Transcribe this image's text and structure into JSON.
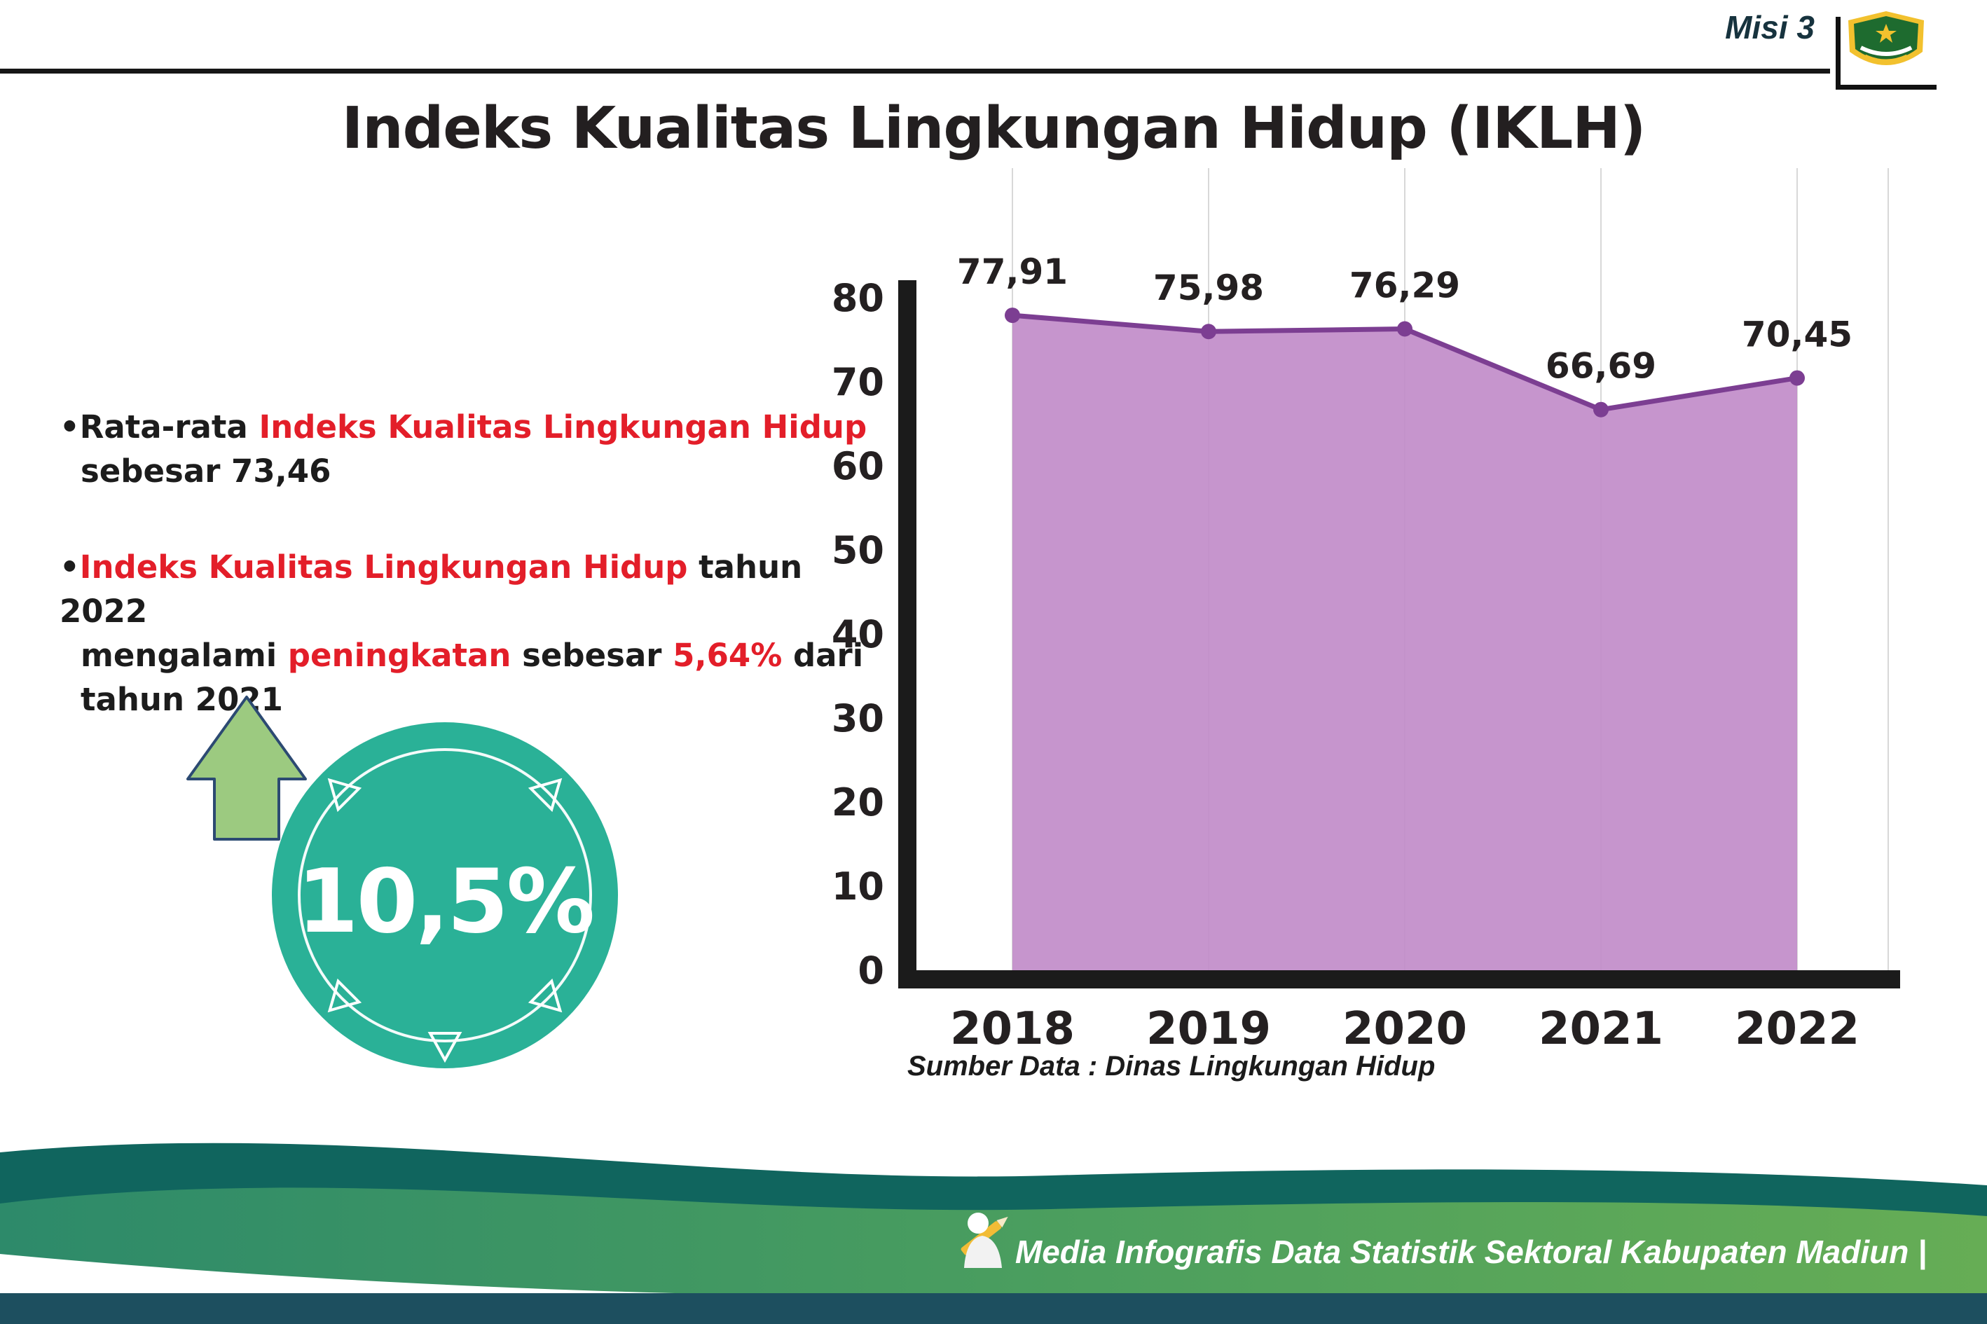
{
  "header": {
    "misi_label": "Misi 3",
    "title": "Indeks Kualitas Lingkungan Hidup (IKLH)",
    "logo_name": "Lambang Kabupaten Madiun"
  },
  "bullets": {
    "marker": "•",
    "b1": {
      "l1_black": "Rata-rata ",
      "l1_red": "Indeks Kualitas Lingkungan Hidup",
      "l2": "sebesar 73,46"
    },
    "b2": {
      "l1_red": "Indeks Kualitas Lingkungan Hidup",
      "l1_black": " tahun 2022",
      "l2_s1": "mengalami ",
      "l2_s2": "peningkatan",
      "l2_s3": " sebesar ",
      "l2_s4": "5,64%",
      "l2_s5": " dari",
      "l3": "tahun 2021"
    }
  },
  "badge": {
    "value": "10,5%"
  },
  "chart_data": {
    "type": "area",
    "title": "Indeks Kualitas Lingkungan Hidup (IKLH)",
    "categories": [
      "2018",
      "2019",
      "2020",
      "2021",
      "2022"
    ],
    "values": [
      77.91,
      75.98,
      76.29,
      66.69,
      70.45
    ],
    "labels": [
      "77,91",
      "75,98",
      "76,29",
      "66,69",
      "70,45"
    ],
    "ylim": [
      0,
      80
    ],
    "yticks": [
      0,
      10,
      20,
      30,
      40,
      50,
      60,
      70,
      80
    ],
    "xlabel": "",
    "ylabel": "",
    "grid": "vertical-light",
    "legend": "none",
    "line_color": "#7c3e92",
    "fill_color": "#c18cc9",
    "source": "Sumber Data : Dinas Lingkungan Hidup"
  },
  "footer": {
    "credit": "Media Infografis Data Statistik Sektoral Kabupaten Madiun |"
  },
  "colors": {
    "accent_red": "#e31e29",
    "badge_teal": "#2ab197",
    "arrow_green": "#9cca80",
    "axis_black": "#1b1b1b",
    "footer_teal": "#10655e",
    "footer_green": "#4c9f5e",
    "footer_bottom_bar": "#1d4f5f"
  }
}
